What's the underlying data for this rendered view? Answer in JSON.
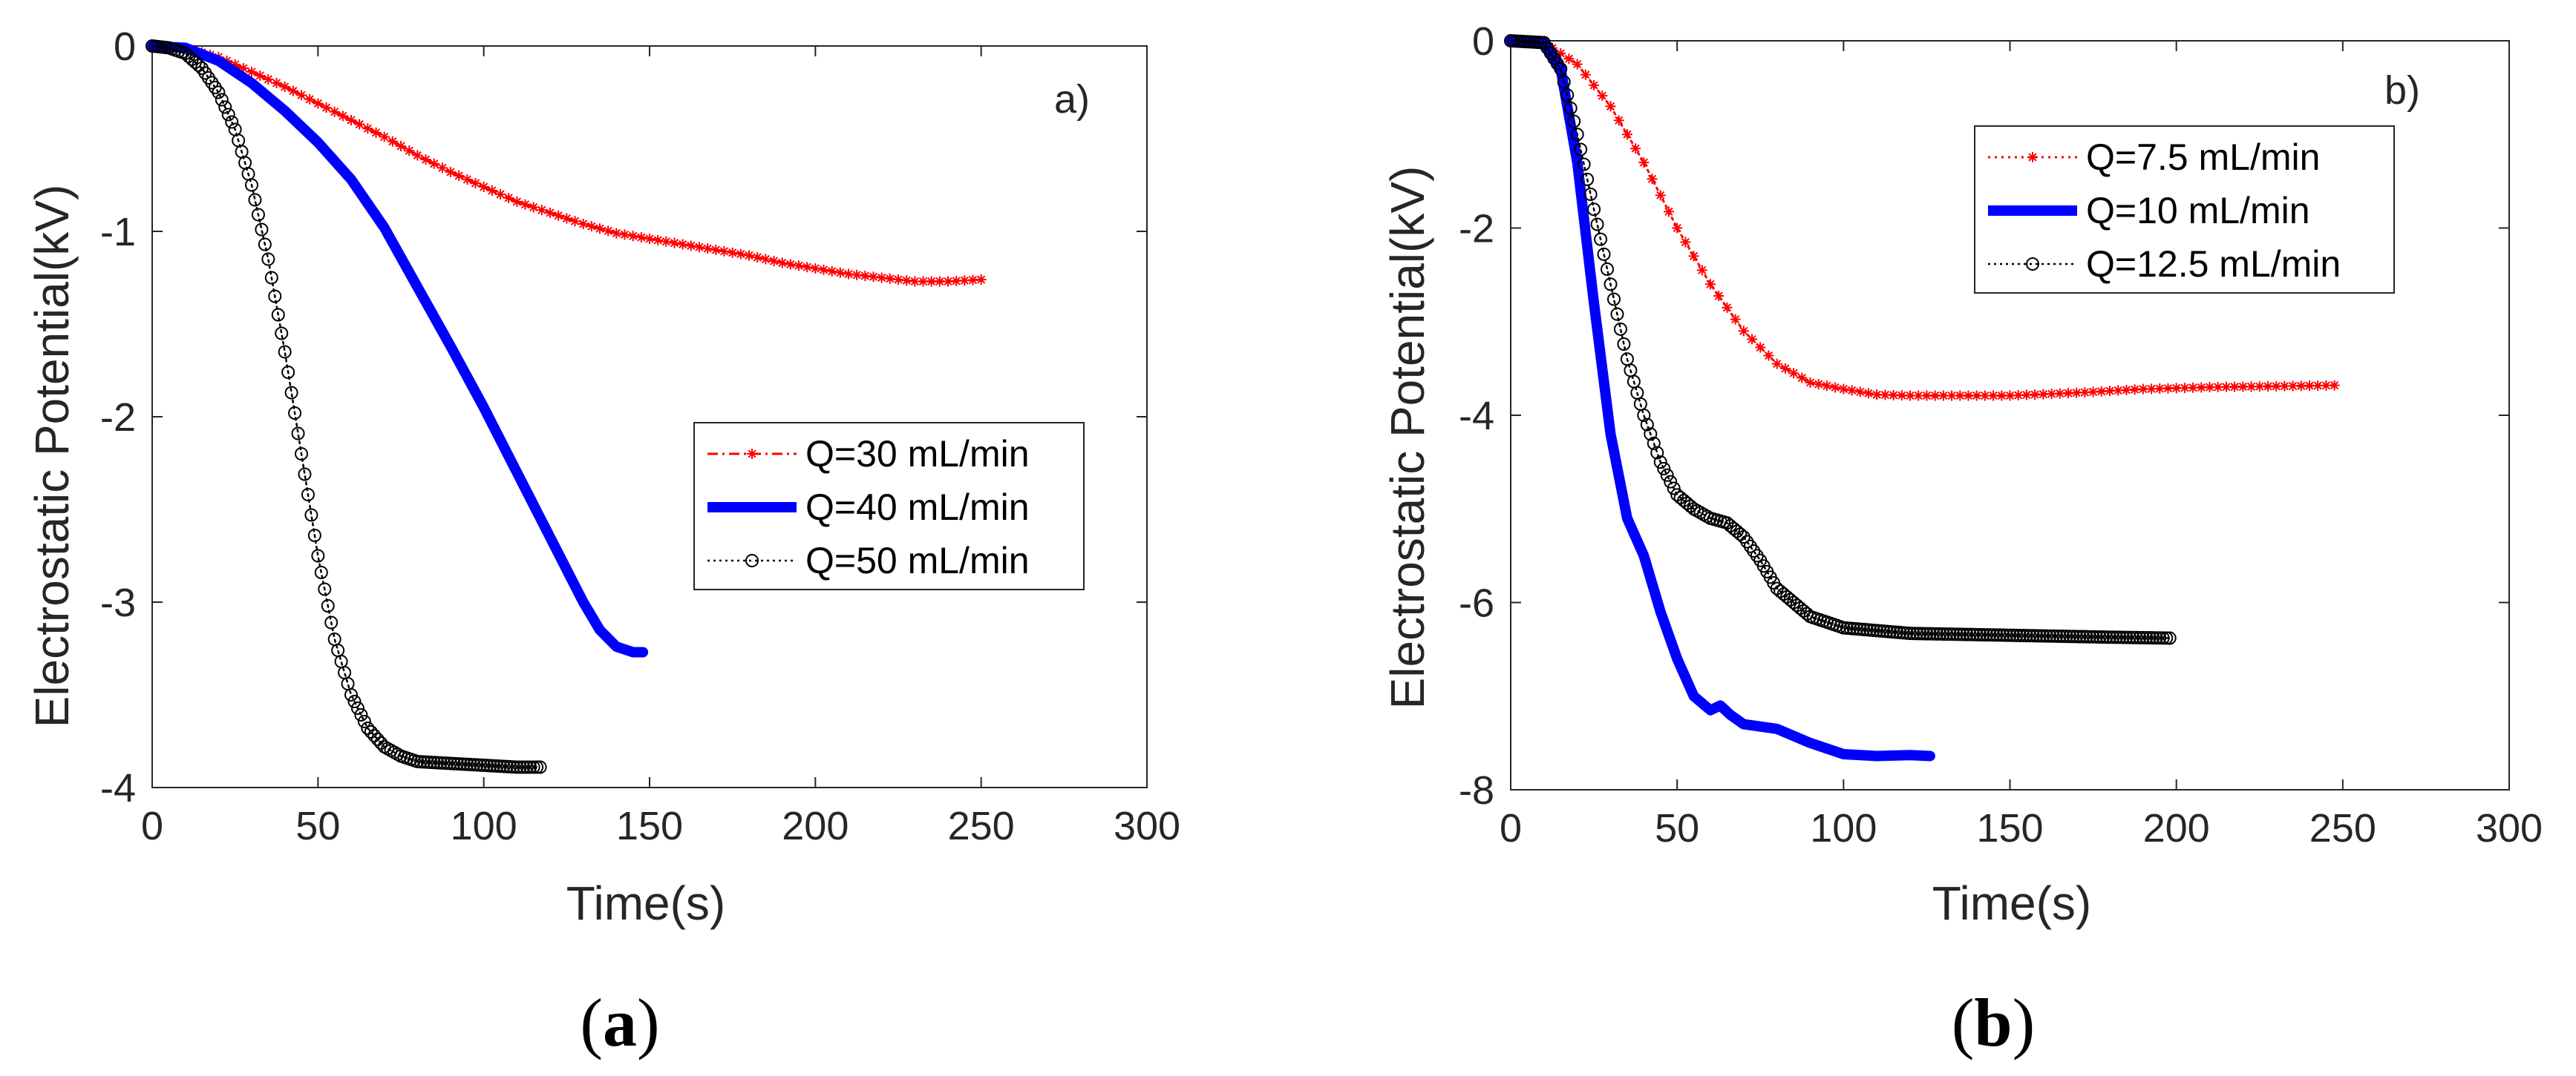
{
  "chart_data": [
    {
      "type": "line",
      "panel_tag": "a)",
      "caption_letter": "a",
      "xlabel": "Time(s)",
      "ylabel": "Electrostatic Potential(kV)",
      "xlim": [
        0,
        300
      ],
      "ylim": [
        -4,
        0
      ],
      "xticks": [
        0,
        50,
        100,
        150,
        200,
        250,
        300
      ],
      "yticks": [
        0,
        -1,
        -2,
        -3,
        -4
      ],
      "xtick_labels": [
        "0",
        "50",
        "100",
        "150",
        "200",
        "250",
        "300"
      ],
      "ytick_labels": [
        "0",
        "-1",
        "-2",
        "-3",
        "-4"
      ],
      "grid": false,
      "legend_position": "center-right",
      "series": [
        {
          "name": "Q=30 mL/min",
          "color": "#ff0000",
          "style": "dashdot-asterisk",
          "points": [
            [
              0,
              0
            ],
            [
              10,
              -0.01
            ],
            [
              20,
              -0.06
            ],
            [
              30,
              -0.14
            ],
            [
              40,
              -0.22
            ],
            [
              50,
              -0.31
            ],
            [
              60,
              -0.4
            ],
            [
              70,
              -0.49
            ],
            [
              80,
              -0.59
            ],
            [
              90,
              -0.68
            ],
            [
              100,
              -0.76
            ],
            [
              110,
              -0.84
            ],
            [
              120,
              -0.9
            ],
            [
              130,
              -0.96
            ],
            [
              140,
              -1.01
            ],
            [
              150,
              -1.04
            ],
            [
              160,
              -1.07
            ],
            [
              170,
              -1.1
            ],
            [
              180,
              -1.13
            ],
            [
              190,
              -1.17
            ],
            [
              200,
              -1.2
            ],
            [
              210,
              -1.23
            ],
            [
              220,
              -1.25
            ],
            [
              230,
              -1.27
            ],
            [
              240,
              -1.27
            ],
            [
              250,
              -1.26
            ]
          ]
        },
        {
          "name": "Q=40 mL/min",
          "color": "#0000ff",
          "style": "thick-solid",
          "points": [
            [
              0,
              0
            ],
            [
              10,
              -0.01
            ],
            [
              20,
              -0.08
            ],
            [
              30,
              -0.2
            ],
            [
              40,
              -0.35
            ],
            [
              50,
              -0.52
            ],
            [
              60,
              -0.72
            ],
            [
              70,
              -0.98
            ],
            [
              80,
              -1.3
            ],
            [
              90,
              -1.62
            ],
            [
              100,
              -1.95
            ],
            [
              110,
              -2.3
            ],
            [
              120,
              -2.65
            ],
            [
              130,
              -3.0
            ],
            [
              135,
              -3.15
            ],
            [
              140,
              -3.24
            ],
            [
              145,
              -3.27
            ],
            [
              148,
              -3.27
            ]
          ]
        },
        {
          "name": "Q=50 mL/min",
          "color": "#000000",
          "style": "dotted-circle",
          "points": [
            [
              0,
              0
            ],
            [
              5,
              -0.01
            ],
            [
              10,
              -0.04
            ],
            [
              15,
              -0.12
            ],
            [
              20,
              -0.25
            ],
            [
              25,
              -0.45
            ],
            [
              30,
              -0.75
            ],
            [
              35,
              -1.15
            ],
            [
              40,
              -1.65
            ],
            [
              45,
              -2.2
            ],
            [
              50,
              -2.75
            ],
            [
              55,
              -3.2
            ],
            [
              60,
              -3.5
            ],
            [
              65,
              -3.68
            ],
            [
              70,
              -3.78
            ],
            [
              75,
              -3.83
            ],
            [
              80,
              -3.86
            ],
            [
              90,
              -3.87
            ],
            [
              100,
              -3.88
            ],
            [
              110,
              -3.89
            ],
            [
              117,
              -3.89
            ]
          ]
        }
      ]
    },
    {
      "type": "line",
      "panel_tag": "b)",
      "caption_letter": "b",
      "xlabel": "Time(s)",
      "ylabel": "Electrostatic Potential(kV)",
      "xlim": [
        0,
        300
      ],
      "ylim": [
        -8,
        0
      ],
      "xticks": [
        0,
        50,
        100,
        150,
        200,
        250,
        300
      ],
      "yticks": [
        0,
        -2,
        -4,
        -6,
        -8
      ],
      "xtick_labels": [
        "0",
        "50",
        "100",
        "150",
        "200",
        "250",
        "300"
      ],
      "ytick_labels": [
        "0",
        "-2",
        "-4",
        "-6",
        "-8"
      ],
      "grid": false,
      "legend_position": "top-right",
      "series": [
        {
          "name": "Q=7.5 mL/min",
          "color": "#ff0000",
          "style": "dotted-asterisk",
          "points": [
            [
              0,
              0
            ],
            [
              10,
              -0.02
            ],
            [
              20,
              -0.25
            ],
            [
              30,
              -0.7
            ],
            [
              40,
              -1.3
            ],
            [
              50,
              -2.0
            ],
            [
              60,
              -2.6
            ],
            [
              70,
              -3.1
            ],
            [
              80,
              -3.45
            ],
            [
              90,
              -3.65
            ],
            [
              100,
              -3.72
            ],
            [
              110,
              -3.78
            ],
            [
              120,
              -3.79
            ],
            [
              130,
              -3.79
            ],
            [
              150,
              -3.79
            ],
            [
              170,
              -3.76
            ],
            [
              190,
              -3.72
            ],
            [
              210,
              -3.7
            ],
            [
              230,
              -3.69
            ],
            [
              248,
              -3.68
            ]
          ]
        },
        {
          "name": "Q=10 mL/min",
          "color": "#0000ff",
          "style": "thick-solid",
          "points": [
            [
              0,
              0
            ],
            [
              10,
              -0.02
            ],
            [
              15,
              -0.3
            ],
            [
              20,
              -1.3
            ],
            [
              25,
              -2.8
            ],
            [
              30,
              -4.2
            ],
            [
              35,
              -5.1
            ],
            [
              40,
              -5.5
            ],
            [
              45,
              -6.1
            ],
            [
              50,
              -6.6
            ],
            [
              55,
              -7.0
            ],
            [
              60,
              -7.15
            ],
            [
              63,
              -7.1
            ],
            [
              66,
              -7.2
            ],
            [
              70,
              -7.3
            ],
            [
              80,
              -7.35
            ],
            [
              90,
              -7.5
            ],
            [
              100,
              -7.62
            ],
            [
              110,
              -7.64
            ],
            [
              120,
              -7.63
            ],
            [
              126,
              -7.64
            ]
          ]
        },
        {
          "name": "Q=12.5 mL/min",
          "color": "#000000",
          "style": "dotted-circle",
          "points": [
            [
              0,
              0
            ],
            [
              10,
              -0.02
            ],
            [
              15,
              -0.3
            ],
            [
              20,
              -1.0
            ],
            [
              25,
              -1.8
            ],
            [
              30,
              -2.6
            ],
            [
              35,
              -3.4
            ],
            [
              40,
              -4.0
            ],
            [
              45,
              -4.5
            ],
            [
              50,
              -4.85
            ],
            [
              55,
              -5.0
            ],
            [
              60,
              -5.1
            ],
            [
              65,
              -5.15
            ],
            [
              70,
              -5.3
            ],
            [
              75,
              -5.55
            ],
            [
              80,
              -5.85
            ],
            [
              90,
              -6.15
            ],
            [
              100,
              -6.27
            ],
            [
              120,
              -6.33
            ],
            [
              150,
              -6.35
            ],
            [
              180,
              -6.37
            ],
            [
              198,
              -6.38
            ]
          ]
        }
      ]
    }
  ]
}
